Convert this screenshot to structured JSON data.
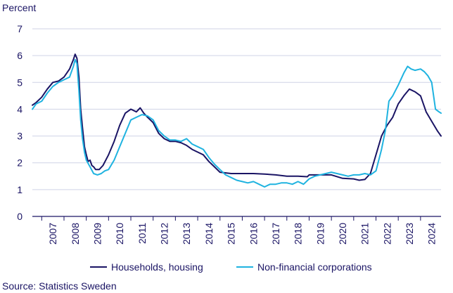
{
  "chart_data": {
    "type": "line",
    "ylabel": "Percent",
    "ylim": [
      0,
      7
    ],
    "yticks": [
      0,
      1,
      2,
      3,
      4,
      5,
      6,
      7
    ],
    "xlim": [
      2006.58,
      2024.92
    ],
    "xticks": [
      "2007",
      "2008",
      "2009",
      "2010",
      "2011",
      "2012",
      "2013",
      "2014",
      "2015",
      "2016",
      "2017",
      "2018",
      "2019",
      "2020",
      "2021",
      "2022",
      "2023",
      "2024"
    ],
    "grid": true,
    "legend_position": "bottom",
    "source": "Source: Statistics Sweden",
    "series": [
      {
        "name": "Households, housing",
        "color": "#1a1464",
        "x": [
          2006.58,
          2006.75,
          2007.0,
          2007.25,
          2007.5,
          2007.75,
          2008.0,
          2008.25,
          2008.42,
          2008.5,
          2008.58,
          2008.67,
          2008.75,
          2008.83,
          2008.92,
          2009.0,
          2009.08,
          2009.17,
          2009.25,
          2009.33,
          2009.42,
          2009.58,
          2009.75,
          2010.0,
          2010.25,
          2010.5,
          2010.75,
          2011.0,
          2011.25,
          2011.42,
          2011.58,
          2011.75,
          2012.0,
          2012.25,
          2012.5,
          2012.75,
          2013.0,
          2013.25,
          2013.5,
          2013.75,
          2014.0,
          2014.25,
          2014.5,
          2014.75,
          2015.0,
          2015.5,
          2016.0,
          2016.5,
          2017.0,
          2017.5,
          2018.0,
          2018.5,
          2018.92,
          2019.0,
          2019.5,
          2020.0,
          2020.5,
          2021.0,
          2021.25,
          2021.5,
          2021.75,
          2022.0,
          2022.25,
          2022.5,
          2022.75,
          2023.0,
          2023.25,
          2023.5,
          2023.75,
          2024.0,
          2024.25,
          2024.5,
          2024.75,
          2024.92
        ],
        "values": [
          4.15,
          4.25,
          4.45,
          4.75,
          5.0,
          5.05,
          5.2,
          5.5,
          5.85,
          6.05,
          5.9,
          5.2,
          4.0,
          3.3,
          2.6,
          2.3,
          2.05,
          2.1,
          1.9,
          1.85,
          1.75,
          1.75,
          1.9,
          2.3,
          2.8,
          3.4,
          3.85,
          4.0,
          3.9,
          4.05,
          3.85,
          3.7,
          3.5,
          3.1,
          2.9,
          2.8,
          2.8,
          2.75,
          2.65,
          2.5,
          2.4,
          2.3,
          2.05,
          1.85,
          1.65,
          1.6,
          1.6,
          1.6,
          1.58,
          1.55,
          1.5,
          1.5,
          1.48,
          1.55,
          1.55,
          1.55,
          1.42,
          1.4,
          1.35,
          1.38,
          1.6,
          2.3,
          3.0,
          3.4,
          3.7,
          4.2,
          4.5,
          4.75,
          4.65,
          4.5,
          3.9,
          3.55,
          3.2,
          3.0
        ]
      },
      {
        "name": "Non-financial corporations",
        "color": "#1fb3e0",
        "x": [
          2006.58,
          2006.75,
          2007.0,
          2007.25,
          2007.5,
          2007.75,
          2008.0,
          2008.25,
          2008.42,
          2008.5,
          2008.58,
          2008.67,
          2008.75,
          2008.83,
          2008.92,
          2009.0,
          2009.17,
          2009.33,
          2009.5,
          2009.67,
          2009.83,
          2010.0,
          2010.25,
          2010.5,
          2010.75,
          2011.0,
          2011.25,
          2011.5,
          2011.75,
          2012.0,
          2012.25,
          2012.5,
          2012.75,
          2013.0,
          2013.25,
          2013.5,
          2013.75,
          2014.0,
          2014.25,
          2014.5,
          2014.75,
          2015.0,
          2015.25,
          2015.5,
          2015.75,
          2016.0,
          2016.25,
          2016.5,
          2016.75,
          2017.0,
          2017.25,
          2017.5,
          2017.75,
          2018.0,
          2018.25,
          2018.5,
          2018.75,
          2019.0,
          2019.25,
          2019.5,
          2019.75,
          2020.0,
          2020.25,
          2020.5,
          2020.75,
          2021.0,
          2021.25,
          2021.5,
          2021.75,
          2022.0,
          2022.25,
          2022.42,
          2022.58,
          2022.75,
          2023.0,
          2023.25,
          2023.42,
          2023.58,
          2023.75,
          2024.0,
          2024.17,
          2024.33,
          2024.5,
          2024.67,
          2024.83,
          2024.92
        ],
        "values": [
          4.0,
          4.2,
          4.3,
          4.6,
          4.85,
          5.0,
          5.1,
          5.2,
          5.6,
          5.85,
          5.7,
          4.7,
          3.6,
          2.9,
          2.4,
          2.1,
          1.85,
          1.6,
          1.55,
          1.6,
          1.7,
          1.75,
          2.1,
          2.6,
          3.1,
          3.6,
          3.7,
          3.8,
          3.75,
          3.6,
          3.2,
          3.0,
          2.85,
          2.85,
          2.8,
          2.9,
          2.7,
          2.6,
          2.5,
          2.2,
          1.95,
          1.75,
          1.55,
          1.45,
          1.35,
          1.3,
          1.25,
          1.3,
          1.2,
          1.1,
          1.2,
          1.2,
          1.25,
          1.25,
          1.2,
          1.3,
          1.2,
          1.4,
          1.5,
          1.55,
          1.6,
          1.65,
          1.6,
          1.55,
          1.5,
          1.55,
          1.55,
          1.6,
          1.55,
          1.7,
          2.5,
          3.2,
          4.3,
          4.5,
          4.9,
          5.35,
          5.6,
          5.5,
          5.45,
          5.5,
          5.4,
          5.25,
          5.0,
          4.0,
          3.9,
          3.85
        ]
      }
    ]
  }
}
